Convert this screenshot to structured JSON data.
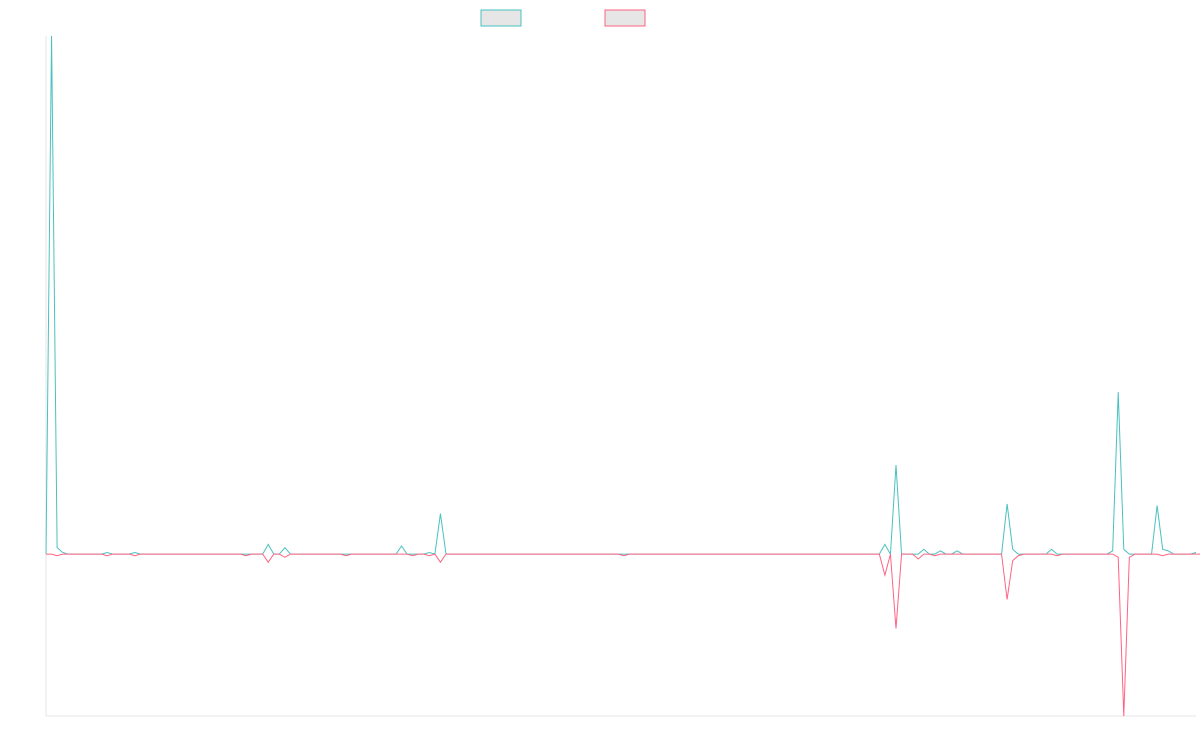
{
  "chart_data": {
    "type": "line",
    "title": "",
    "xlabel": "",
    "ylabel": "",
    "grid": false,
    "legend_position": "top-center",
    "ylim": [
      -100,
      320
    ],
    "series": [
      {
        "name": "",
        "color": "#4bc0c0",
        "fill": "#e6e6e6",
        "values": [
          0,
          322,
          4,
          1,
          0,
          0,
          0,
          0,
          0,
          0,
          0,
          1,
          0,
          0,
          0,
          0,
          1,
          0,
          0,
          0,
          0,
          0,
          0,
          0,
          0,
          0,
          0,
          0,
          0,
          0,
          0,
          0,
          0,
          0,
          0,
          0,
          0,
          0,
          0,
          0,
          6,
          0,
          0,
          4,
          0,
          0,
          0,
          0,
          0,
          0,
          0,
          0,
          0,
          0,
          0,
          0,
          0,
          0,
          0,
          0,
          0,
          0,
          0,
          0,
          5,
          0,
          0,
          0,
          0,
          1,
          0,
          25,
          0,
          0,
          0,
          0,
          0,
          0,
          0,
          0,
          0,
          0,
          0,
          0,
          0,
          0,
          0,
          0,
          0,
          0,
          0,
          0,
          0,
          0,
          0,
          0,
          0,
          0,
          0,
          0,
          0,
          0,
          0,
          0,
          0,
          0,
          0,
          0,
          0,
          0,
          0,
          0,
          0,
          0,
          0,
          0,
          0,
          0,
          0,
          0,
          0,
          0,
          0,
          0,
          0,
          0,
          0,
          0,
          0,
          0,
          0,
          0,
          0,
          0,
          0,
          0,
          0,
          0,
          0,
          0,
          0,
          0,
          0,
          0,
          0,
          0,
          0,
          0,
          0,
          0,
          0,
          6,
          0,
          55,
          0,
          0,
          0,
          0,
          3,
          0,
          0,
          2,
          0,
          0,
          2,
          0,
          0,
          0,
          0,
          0,
          0,
          0,
          0,
          31,
          3,
          0,
          0,
          0,
          0,
          0,
          0,
          3,
          0,
          0,
          0,
          0,
          0,
          0,
          0,
          0,
          0,
          0,
          2,
          100,
          3,
          0,
          0,
          0,
          0,
          0,
          30,
          3,
          2,
          0,
          0,
          0,
          0,
          1
        ]
      },
      {
        "name": "",
        "color": "#ff6384",
        "fill": "#e6e6e6",
        "values": [
          0,
          0,
          -1,
          0,
          0,
          0,
          0,
          0,
          0,
          0,
          0,
          -1,
          0,
          0,
          0,
          0,
          -1,
          0,
          0,
          0,
          0,
          0,
          0,
          0,
          0,
          0,
          0,
          0,
          0,
          0,
          0,
          0,
          0,
          0,
          0,
          0,
          -1,
          0,
          0,
          0,
          -5,
          0,
          0,
          -2,
          0,
          0,
          0,
          0,
          0,
          0,
          0,
          0,
          0,
          0,
          -1,
          0,
          0,
          0,
          0,
          0,
          0,
          0,
          0,
          0,
          0,
          0,
          -1,
          0,
          0,
          -1,
          0,
          -5,
          0,
          0,
          0,
          0,
          0,
          0,
          0,
          0,
          0,
          0,
          0,
          0,
          0,
          0,
          0,
          0,
          0,
          0,
          0,
          0,
          0,
          0,
          0,
          0,
          0,
          0,
          0,
          0,
          0,
          0,
          0,
          0,
          -1,
          0,
          0,
          0,
          0,
          0,
          0,
          0,
          0,
          0,
          0,
          0,
          0,
          0,
          0,
          0,
          0,
          0,
          0,
          0,
          0,
          0,
          0,
          0,
          0,
          0,
          0,
          0,
          0,
          0,
          0,
          0,
          0,
          0,
          0,
          0,
          0,
          0,
          0,
          0,
          0,
          0,
          0,
          0,
          0,
          0,
          0,
          -13,
          0,
          -46,
          0,
          0,
          0,
          -3,
          0,
          0,
          -1,
          0,
          0,
          0,
          0,
          0,
          0,
          0,
          0,
          0,
          0,
          0,
          0,
          -28,
          -4,
          -1,
          0,
          0,
          0,
          0,
          0,
          0,
          -1,
          0,
          0,
          0,
          0,
          0,
          0,
          0,
          0,
          0,
          0,
          -2,
          -100,
          -2,
          0,
          0,
          0,
          0,
          0,
          -1,
          0,
          0,
          0,
          0,
          0,
          0,
          0
        ]
      }
    ]
  }
}
